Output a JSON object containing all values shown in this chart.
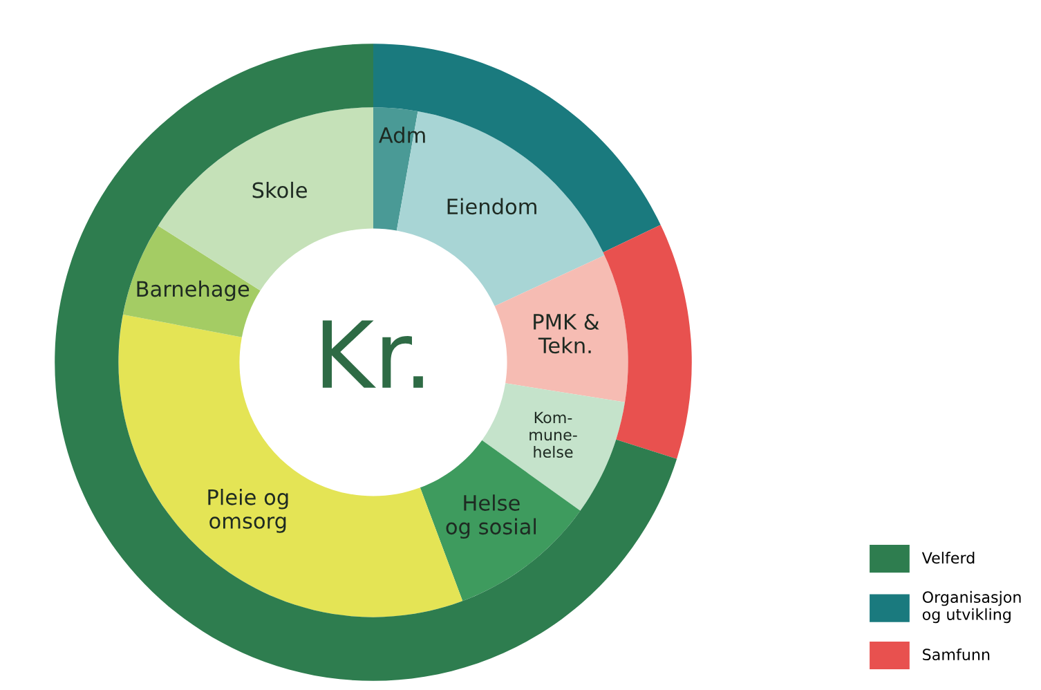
{
  "chart_data": {
    "type": "donut",
    "annotations": [
      "Kr."
    ],
    "legend": "bottom right",
    "categories": [
      "Adm",
      "Eiendom",
      "PMK &\nTekn.",
      "Kom-\nmune-\nhelse",
      "Helse\nog sosial",
      "Pleie og\nomsorg",
      "Barnehage",
      "Skole",
      "Organisasjon\nog utvikling",
      "Samfunn",
      "Velferd"
    ],
    "colors": [
      "#4a9a96",
      "#a8d5d5",
      "#f6bcb3",
      "#c5e3cb",
      "#3e9b5e",
      "#e4e455",
      "#a4cc64",
      "#c5e1b8",
      "#1a7a7e",
      "#e8514f",
      "#2e7d4f"
    ],
    "series": [
      {
        "values": [
          2.8,
          15.3,
          9.4,
          7.4,
          9.4,
          33.7,
          6.0,
          16.0,
          null,
          null,
          null
        ]
      },
      {
        "values": [
          null,
          null,
          null,
          null,
          null,
          null,
          null,
          null,
          17.9,
          12.0,
          70.1
        ]
      }
    ]
  }
}
